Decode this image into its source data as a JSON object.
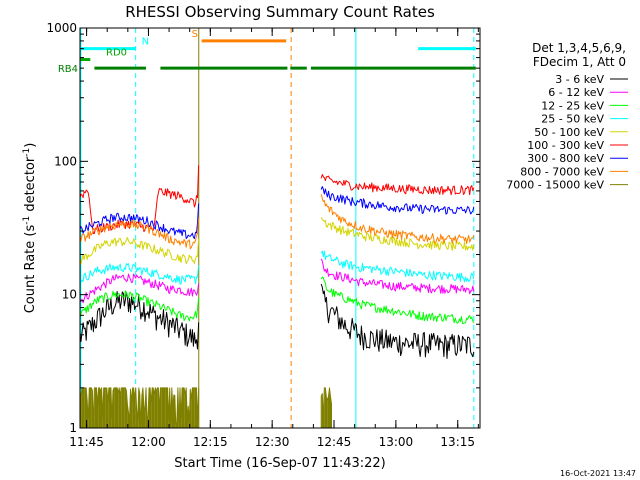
{
  "chart_data": {
    "type": "line",
    "title": "RHESSI Observing Summary Count Rates",
    "xlabel": "Start Time (16-Sep-07 11:43:22)",
    "ylabel_main": "Count Rate (s",
    "ylabel_sup1": "-1",
    "ylabel_mid": " detector",
    "ylabel_sup2": "-1",
    "ylabel_end": ")",
    "x_unit": "minutes after 11:43:22",
    "xlim": [
      0,
      97
    ],
    "ylim": [
      1,
      1000
    ],
    "yscale": "log",
    "x_ticks": [
      {
        "value": 1.6,
        "label": "11:45"
      },
      {
        "value": 16.6,
        "label": "12:00"
      },
      {
        "value": 31.6,
        "label": "12:15"
      },
      {
        "value": 46.6,
        "label": "12:30"
      },
      {
        "value": 61.6,
        "label": "12:45"
      },
      {
        "value": 76.6,
        "label": "13:00"
      },
      {
        "value": 91.6,
        "label": "13:15"
      }
    ],
    "y_ticks": [
      {
        "value": 1,
        "label": "1"
      },
      {
        "value": 10,
        "label": "10"
      },
      {
        "value": 100,
        "label": "100"
      },
      {
        "value": 1000,
        "label": "1000"
      }
    ],
    "legend": {
      "header1": "Det 1,3,4,5,6,9,",
      "header2": "FDecim 1, Att 0",
      "entries": [
        {
          "label": "3 - 6 keV",
          "color": "#000000"
        },
        {
          "label": "6 - 12 keV",
          "color": "#ff00ff"
        },
        {
          "label": "12 - 25 keV",
          "color": "#00ff00"
        },
        {
          "label": "25 - 50 keV",
          "color": "#00ffff"
        },
        {
          "label": "50 - 100 keV",
          "color": "#d4d400"
        },
        {
          "label": "100 - 300 keV",
          "color": "#ff0000"
        },
        {
          "label": "300 - 800 keV",
          "color": "#0000ff"
        },
        {
          "label": "800 - 7000 keV",
          "color": "#ff8000"
        },
        {
          "label": "7000 - 15000 keV",
          "color": "#808000"
        }
      ]
    },
    "flag_bars": [
      {
        "label": "N",
        "color": "#00ffff",
        "y": 700,
        "segments": [
          [
            0,
            13.5
          ],
          [
            82,
            96
          ]
        ]
      },
      {
        "label": "RD0",
        "color": "#00aa00",
        "y": 580,
        "segments": [
          [
            0,
            2.5
          ]
        ]
      },
      {
        "label": "RB4",
        "color": "#008000",
        "y": 500,
        "segments": [
          [
            3.5,
            16
          ],
          [
            19.5,
            50.3
          ],
          [
            51,
            55
          ],
          [
            56,
            96
          ]
        ]
      },
      {
        "label": "S",
        "color": "#ff8000",
        "y": 800,
        "segments": [
          [
            29.5,
            50
          ]
        ]
      }
    ],
    "vertical_lines": [
      {
        "x": 0.2,
        "color": "#00ffff",
        "dash": "solid"
      },
      {
        "x": 13.5,
        "color": "#00ffff",
        "dash": "dash"
      },
      {
        "x": 28.8,
        "color": "#808000",
        "dash": "solid"
      },
      {
        "x": 51.2,
        "color": "#ff8000",
        "dash": "dash"
      },
      {
        "x": 66.9,
        "color": "#00ffff",
        "dash": "solid"
      },
      {
        "x": 95.5,
        "color": "#00ffff",
        "dash": "dash"
      }
    ],
    "gaps": [
      [
        28.9,
        58.5
      ]
    ],
    "series": [
      {
        "name": "3 - 6 keV",
        "color": "#000000",
        "x": [
          0,
          2,
          4,
          6,
          8,
          10,
          12,
          14,
          16,
          18,
          20,
          22,
          24,
          26,
          27,
          28,
          28.5,
          28.9,
          58.5,
          59,
          60,
          62,
          64,
          66,
          68,
          70,
          72,
          74,
          76,
          78,
          80,
          82,
          84,
          86,
          88,
          90,
          92,
          94,
          95.5
        ],
        "y": [
          4.8,
          5.5,
          6.5,
          7.5,
          8.5,
          9,
          9,
          8.5,
          8,
          7,
          6.5,
          6,
          5.5,
          5,
          4.8,
          4.5,
          5,
          8,
          11,
          9,
          8,
          7,
          6,
          5.5,
          5,
          4.8,
          4.6,
          4.5,
          4.4,
          4.4,
          4.3,
          4.3,
          4.3,
          4.2,
          4.2,
          4.2,
          4.2,
          4.2,
          4.2
        ]
      },
      {
        "name": "6 - 12 keV",
        "color": "#ff00ff",
        "x": [
          0,
          2,
          4,
          6,
          8,
          10,
          12,
          14,
          16,
          18,
          20,
          22,
          24,
          26,
          27,
          28,
          28.5,
          28.9,
          58.5,
          59,
          60,
          62,
          64,
          66,
          68,
          70,
          72,
          74,
          76,
          78,
          80,
          82,
          84,
          86,
          88,
          90,
          92,
          94,
          95.5
        ],
        "y": [
          9,
          10,
          11,
          12,
          13,
          13.5,
          13.5,
          13,
          12.5,
          12,
          11.5,
          11,
          11,
          10.5,
          10.5,
          10.5,
          11,
          14,
          18,
          16,
          15,
          14,
          13.5,
          13,
          12.5,
          12.2,
          12,
          11.8,
          11.6,
          11.5,
          11.4,
          11.3,
          11.2,
          11.2,
          11.1,
          11.1,
          11,
          11,
          11
        ]
      },
      {
        "name": "12 - 25 keV",
        "color": "#00ff00",
        "x": [
          0,
          2,
          4,
          6,
          8,
          10,
          12,
          14,
          16,
          18,
          20,
          22,
          24,
          26,
          27,
          28,
          28.5,
          28.9,
          58.5,
          59,
          60,
          62,
          64,
          66,
          68,
          70,
          72,
          74,
          76,
          78,
          80,
          82,
          84,
          86,
          88,
          90,
          92,
          94,
          95.5
        ],
        "y": [
          7,
          8,
          9,
          9.5,
          10,
          10,
          10,
          9.5,
          9,
          8.5,
          8,
          7.5,
          7,
          6.8,
          6.8,
          7,
          7.5,
          10,
          14,
          12.5,
          11,
          10,
          9.5,
          9,
          8.5,
          8.2,
          8,
          7.8,
          7.6,
          7.4,
          7.2,
          7,
          6.9,
          6.8,
          6.8,
          6.7,
          6.6,
          6.6,
          6.6
        ]
      },
      {
        "name": "25 - 50 keV",
        "color": "#00ffff",
        "x": [
          0,
          2,
          4,
          6,
          8,
          10,
          12,
          14,
          16,
          18,
          20,
          22,
          24,
          26,
          27,
          28,
          28.5,
          28.9,
          58.5,
          59,
          60,
          62,
          64,
          66,
          68,
          70,
          72,
          74,
          76,
          78,
          80,
          82,
          84,
          86,
          88,
          90,
          92,
          94,
          95.5
        ],
        "y": [
          13,
          14,
          15,
          15.5,
          16,
          16,
          16,
          15.5,
          15,
          14.5,
          14,
          13.5,
          13,
          13,
          13,
          13,
          14,
          18,
          22,
          20,
          19,
          18,
          17,
          16.5,
          16,
          15.8,
          15.5,
          15.2,
          15,
          14.8,
          14.5,
          14.2,
          14,
          14,
          13.8,
          13.8,
          13.6,
          13.5,
          13.5
        ]
      },
      {
        "name": "50 - 100 keV",
        "color": "#d4d400",
        "x": [
          0,
          2,
          4,
          6,
          8,
          10,
          12,
          14,
          16,
          18,
          20,
          22,
          24,
          26,
          27,
          28,
          28.5,
          28.9,
          58.5,
          59,
          60,
          62,
          64,
          66,
          68,
          70,
          72,
          74,
          76,
          78,
          80,
          82,
          84,
          86,
          88,
          90,
          92,
          94,
          95.5
        ],
        "y": [
          18,
          20,
          22,
          24,
          25,
          25,
          25,
          24,
          23,
          22,
          21,
          20,
          19,
          18.5,
          18.5,
          18.5,
          20,
          28,
          40,
          36,
          34,
          32,
          30,
          29,
          28,
          27,
          26.5,
          26,
          25.5,
          25,
          24.5,
          24,
          24,
          23.5,
          23.5,
          23,
          23,
          23,
          23
        ]
      },
      {
        "name": "100 - 300 keV",
        "color": "#ff0000",
        "x": [
          0,
          1,
          2,
          2.5,
          3,
          4,
          6,
          8,
          10,
          12,
          14,
          16,
          18,
          19,
          20,
          22,
          24,
          26,
          27,
          28,
          28.5,
          28.9,
          58.5,
          59,
          60,
          62,
          64,
          66,
          68,
          70,
          72,
          74,
          76,
          78,
          80,
          82,
          84,
          86,
          88,
          90,
          92,
          94,
          95.5
        ],
        "y": [
          55,
          58,
          62,
          45,
          30,
          31,
          32,
          33,
          34,
          34,
          33,
          32,
          31,
          60,
          59,
          57,
          55,
          52,
          50,
          48,
          55,
          130,
          80,
          75,
          72,
          70,
          68,
          66,
          65,
          64,
          64,
          63,
          63,
          62,
          62,
          62,
          61,
          61,
          61,
          61,
          61,
          61,
          61
        ]
      },
      {
        "name": "300 - 800 keV",
        "color": "#0000ff",
        "x": [
          0,
          2,
          4,
          6,
          8,
          10,
          12,
          14,
          16,
          18,
          20,
          22,
          24,
          26,
          27,
          28,
          28.5,
          28.9,
          58.5,
          59,
          60,
          62,
          64,
          66,
          68,
          70,
          72,
          74,
          76,
          78,
          80,
          82,
          84,
          86,
          88,
          90,
          92,
          94,
          95.5
        ],
        "y": [
          30,
          32,
          34,
          36,
          38,
          38,
          38,
          37,
          36,
          34,
          32,
          30,
          29,
          28,
          28,
          28,
          32,
          60,
          65,
          60,
          56,
          54,
          52,
          50,
          49,
          48,
          47,
          46,
          45.5,
          45,
          44.5,
          44,
          44,
          43.5,
          43.5,
          43,
          43,
          43,
          43
        ]
      },
      {
        "name": "800 - 7000 keV",
        "color": "#ff8000",
        "x": [
          0,
          2,
          4,
          6,
          8,
          10,
          12,
          14,
          16,
          18,
          20,
          22,
          24,
          26,
          27,
          28,
          28.5,
          28.9,
          58.5,
          59,
          60,
          62,
          64,
          66,
          68,
          70,
          72,
          74,
          76,
          78,
          80,
          82,
          84,
          86,
          88,
          90,
          92,
          94,
          95.5
        ],
        "y": [
          26,
          28,
          30,
          32,
          33,
          34,
          34,
          33,
          32,
          30,
          28,
          26,
          25,
          24,
          24,
          24,
          28,
          45,
          55,
          50,
          45,
          40,
          36,
          34,
          32,
          31,
          30,
          29,
          28.5,
          28,
          27.5,
          27,
          27,
          26.5,
          26.5,
          26,
          26,
          26,
          26
        ]
      },
      {
        "name": "7000 - 15000 keV",
        "color": "#808000",
        "x": [
          0,
          1,
          2,
          3,
          4,
          5,
          6,
          7,
          8,
          9,
          10,
          11,
          12,
          13,
          14,
          15,
          16,
          17,
          18,
          19,
          20,
          21,
          22,
          23,
          24,
          58.5,
          59,
          60,
          61
        ],
        "y": [
          2,
          1.3,
          2,
          1.5,
          2,
          1.2,
          2,
          2,
          1.5,
          2,
          1.8,
          2,
          1.4,
          2,
          2,
          1.6,
          2,
          1.3,
          2,
          1.7,
          2,
          1.5,
          2,
          1.2,
          1.8,
          2,
          1.5,
          2,
          1.3
        ]
      }
    ]
  },
  "footer_timestamp": "16-Oct-2021 13:47"
}
